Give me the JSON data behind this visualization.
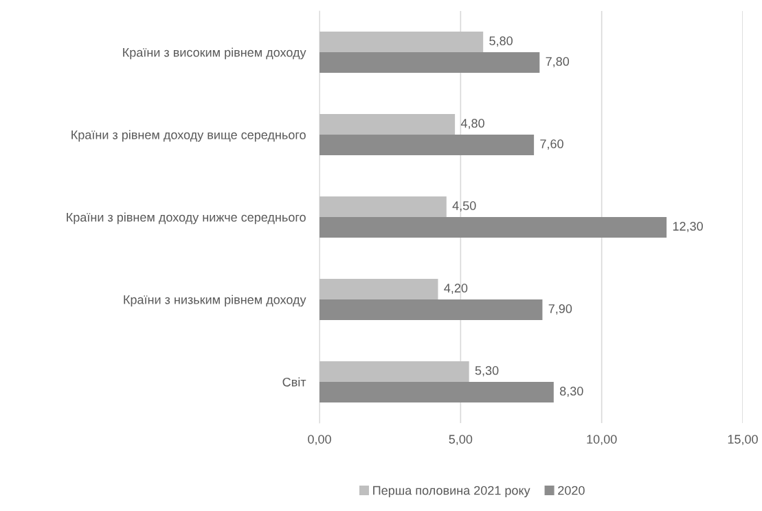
{
  "chart_data": {
    "type": "bar",
    "orientation": "horizontal",
    "categories": [
      "Країни з високим рівнем доходу",
      "Країни з рівнем доходу вище середнього",
      "Країни з рівнем доходу нижче середнього",
      "Країни з низьким рівнем доходу",
      "Світ"
    ],
    "series": [
      {
        "name": "Перша половина 2021 року",
        "color": "#bfbfbf",
        "values": [
          5.8,
          4.8,
          4.5,
          4.2,
          5.3
        ],
        "value_labels": [
          "5,80",
          "4,80",
          "4,50",
          "4,20",
          "5,30"
        ]
      },
      {
        "name": "2020",
        "color": "#8c8c8c",
        "values": [
          7.8,
          7.6,
          12.3,
          7.9,
          8.3
        ],
        "value_labels": [
          "7,80",
          "7,60",
          "12,30",
          "7,90",
          "8,30"
        ]
      }
    ],
    "xlim": [
      0,
      15
    ],
    "xticks": [
      {
        "value": 0,
        "label": "0,00"
      },
      {
        "value": 5,
        "label": "5,00"
      },
      {
        "value": 10,
        "label": "10,00"
      },
      {
        "value": 15,
        "label": "15,00"
      }
    ],
    "grid": "x",
    "legend": "bottom"
  }
}
